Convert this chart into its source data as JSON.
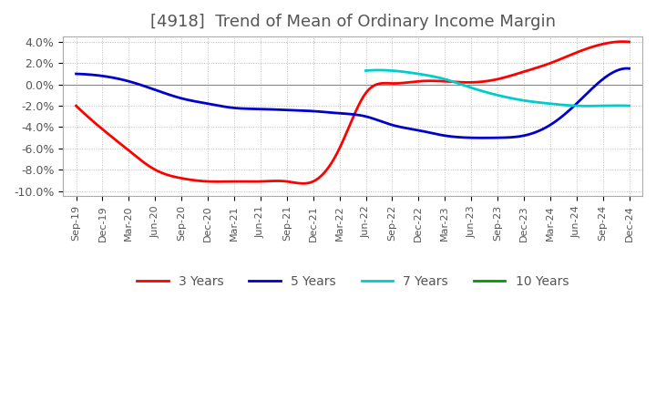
{
  "title": "[4918]  Trend of Mean of Ordinary Income Margin",
  "ylim": [
    -0.105,
    0.045
  ],
  "yticks": [
    -0.1,
    -0.08,
    -0.06,
    -0.04,
    -0.02,
    0.0,
    0.02,
    0.04
  ],
  "ytick_labels": [
    "-10.0%",
    "-8.0%",
    "-6.0%",
    "-4.0%",
    "-2.0%",
    "0.0%",
    "2.0%",
    "4.0%"
  ],
  "x_labels": [
    "Sep-19",
    "Dec-19",
    "Mar-20",
    "Jun-20",
    "Sep-20",
    "Dec-20",
    "Mar-21",
    "Jun-21",
    "Sep-21",
    "Dec-21",
    "Mar-22",
    "Jun-22",
    "Sep-22",
    "Dec-22",
    "Mar-23",
    "Jun-23",
    "Sep-23",
    "Dec-23",
    "Mar-24",
    "Jun-24",
    "Sep-24",
    "Dec-24"
  ],
  "colors": {
    "3yr": "#ff0000",
    "5yr": "#0000cc",
    "7yr": "#00cccc",
    "10yr": "#009900"
  },
  "legend_labels": [
    "3 Years",
    "5 Years",
    "7 Years",
    "10 Years"
  ],
  "background_color": "#ffffff",
  "grid_color": "#bbbbbb",
  "title_color": "#555555",
  "series_3yr": [
    -0.02,
    -0.042,
    -0.062,
    -0.08,
    -0.088,
    -0.091,
    -0.091,
    -0.091,
    -0.091,
    -0.091,
    -0.06,
    -0.008,
    0.001,
    0.003,
    0.003,
    0.002,
    0.005,
    0.012,
    0.02,
    0.03,
    0.038,
    0.04
  ],
  "series_5yr": [
    0.01,
    0.008,
    0.003,
    -0.005,
    -0.013,
    -0.018,
    -0.022,
    -0.023,
    -0.024,
    -0.025,
    -0.027,
    -0.03,
    -0.038,
    -0.043,
    -0.048,
    -0.05,
    -0.05,
    -0.048,
    -0.038,
    -0.018,
    0.005,
    0.015
  ],
  "series_7yr": [
    null,
    null,
    null,
    null,
    null,
    null,
    null,
    null,
    null,
    null,
    null,
    0.013,
    0.013,
    0.01,
    0.005,
    -0.003,
    -0.01,
    -0.015,
    -0.018,
    -0.02,
    -0.02,
    -0.02
  ],
  "series_10yr": [
    null,
    null,
    null,
    null,
    null,
    null,
    null,
    null,
    null,
    null,
    null,
    null,
    null,
    null,
    null,
    null,
    null,
    null,
    null,
    null,
    null,
    null
  ]
}
